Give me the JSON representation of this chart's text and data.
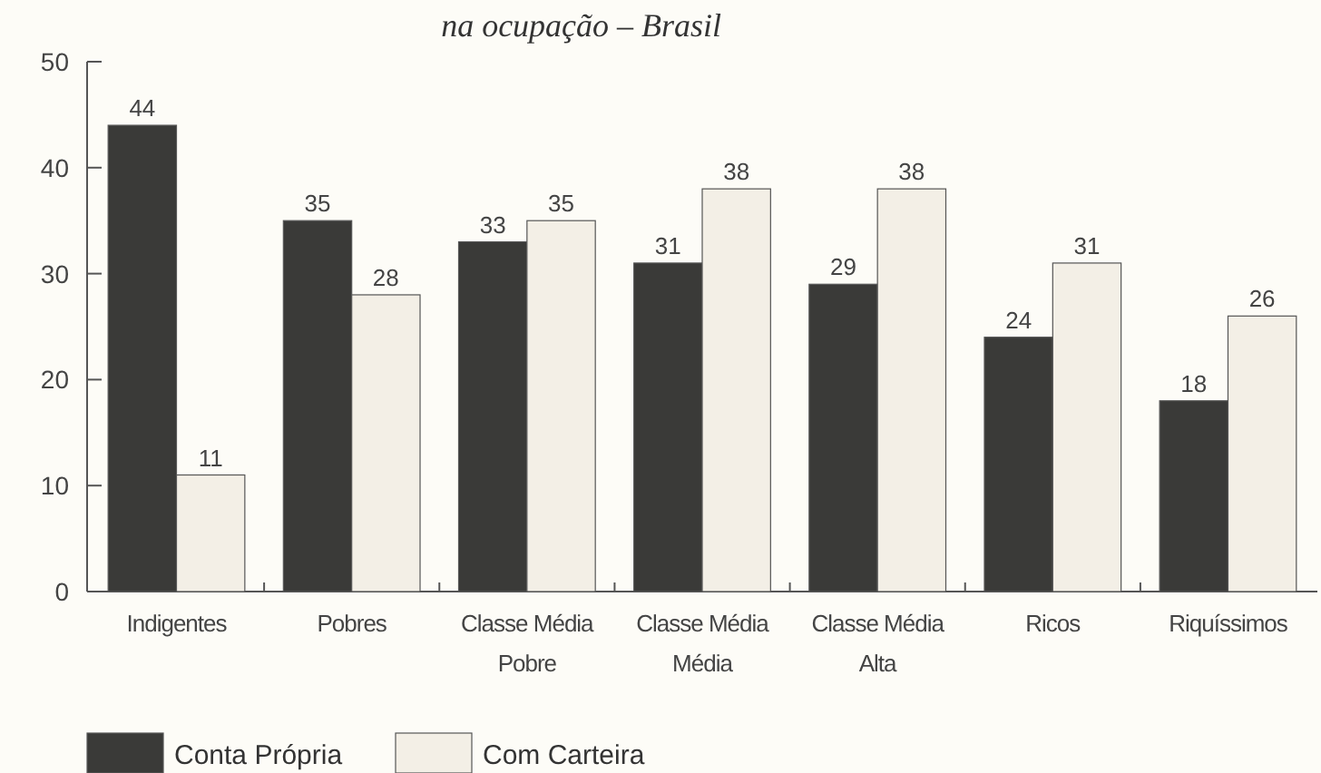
{
  "chart_data": {
    "type": "bar",
    "title": "na ocupação – Brasil",
    "categories": [
      "Indigentes",
      "Pobres",
      "Classe Média\nPobre",
      "Classe Média\nMédia",
      "Classe Média\nAlta",
      "Ricos",
      "Riquíssimos"
    ],
    "series": [
      {
        "name": "Conta Própria",
        "color": "#3a3a38",
        "values": [
          44,
          35,
          33,
          31,
          29,
          24,
          18
        ]
      },
      {
        "name": "Com Carteira",
        "color": "#f3efe6",
        "values": [
          11,
          28,
          35,
          38,
          38,
          31,
          26
        ]
      }
    ],
    "ylim": [
      0,
      50
    ],
    "yticks": [
      0,
      10,
      20,
      30,
      40,
      50
    ],
    "data_labels": true,
    "legend": "bottom left",
    "grid": false
  }
}
